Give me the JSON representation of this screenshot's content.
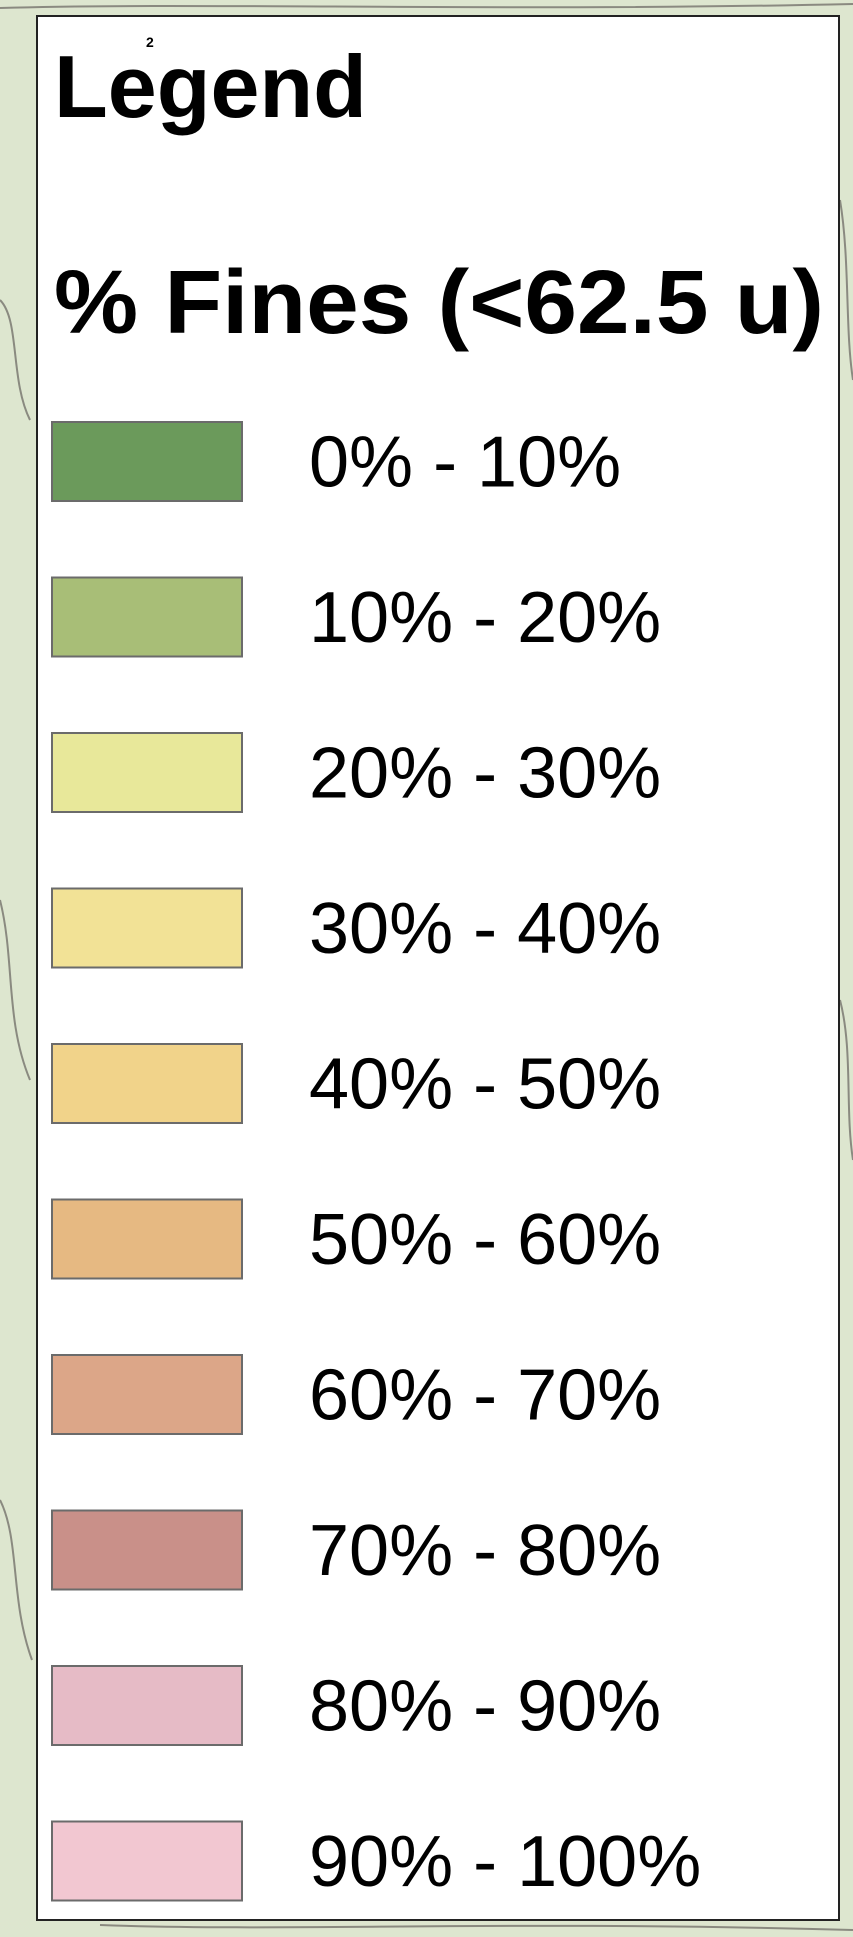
{
  "header": {
    "title": "Legend",
    "mark": "2"
  },
  "legend": {
    "title": "% Fines (<62.5 u)",
    "items": [
      {
        "label": "0% - 10%",
        "color": "#6b9a5b"
      },
      {
        "label": "10% - 20%",
        "color": "#a8be77"
      },
      {
        "label": "20% - 30%",
        "color": "#e8e89a"
      },
      {
        "label": "30% - 40%",
        "color": "#f2e296"
      },
      {
        "label": "40% - 50%",
        "color": "#f1d38a"
      },
      {
        "label": "50% - 60%",
        "color": "#e6b982"
      },
      {
        "label": "60% - 70%",
        "color": "#dca688"
      },
      {
        "label": "70% - 80%",
        "color": "#c99089"
      },
      {
        "label": "80% - 90%",
        "color": "#e6bbc6"
      },
      {
        "label": "90% - 100%",
        "color": "#f2c7d1"
      }
    ]
  }
}
